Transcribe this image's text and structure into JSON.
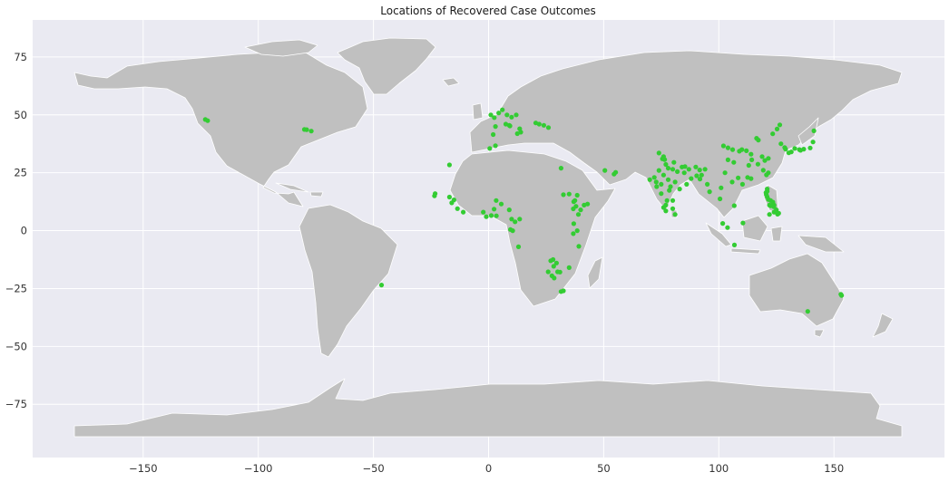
{
  "chart_data": {
    "type": "scatter",
    "title": "Locations of Recovered Case Outcomes",
    "xlabel": "",
    "ylabel": "",
    "xlim": [
      -198,
      198
    ],
    "ylim": [
      -98,
      91
    ],
    "x_ticks": [
      -150,
      -100,
      -50,
      0,
      50,
      100,
      150
    ],
    "y_ticks": [
      75,
      50,
      25,
      0,
      -25,
      -50,
      -75
    ],
    "grid": true,
    "style": "seaborn-darkgrid",
    "colors": {
      "background": "#eaeaf2",
      "land": "#c0c0c0",
      "borders": "#ffffff",
      "gridline": "#ffffff",
      "marker": "#33cc33"
    },
    "points": [
      {
        "x": -123,
        "y": 48
      },
      {
        "x": -122,
        "y": 47.5
      },
      {
        "x": -80,
        "y": 43.7
      },
      {
        "x": -79,
        "y": 43.6
      },
      {
        "x": -77,
        "y": 43
      },
      {
        "x": -46.5,
        "y": -23.5
      },
      {
        "x": 1,
        "y": 50
      },
      {
        "x": 2.5,
        "y": 48.8
      },
      {
        "x": 4.4,
        "y": 50.8
      },
      {
        "x": 6,
        "y": 52.2
      },
      {
        "x": 7.5,
        "y": 46
      },
      {
        "x": 9,
        "y": 45.5
      },
      {
        "x": 9.3,
        "y": 45.2
      },
      {
        "x": 10,
        "y": 49
      },
      {
        "x": 12,
        "y": 50
      },
      {
        "x": 12.5,
        "y": 41.9
      },
      {
        "x": 13.5,
        "y": 44
      },
      {
        "x": 14,
        "y": 42.5
      },
      {
        "x": 8,
        "y": 50
      },
      {
        "x": 20.5,
        "y": 46.5
      },
      {
        "x": 22,
        "y": 46
      },
      {
        "x": 24,
        "y": 45.5
      },
      {
        "x": 26,
        "y": 44.5
      },
      {
        "x": 3,
        "y": 45
      },
      {
        "x": 2,
        "y": 41.5
      },
      {
        "x": 0.5,
        "y": 35.5
      },
      {
        "x": 3,
        "y": 36.7
      },
      {
        "x": -17,
        "y": 28.4
      },
      {
        "x": -23.5,
        "y": 15
      },
      {
        "x": -23.2,
        "y": 16
      },
      {
        "x": -17,
        "y": 14.5
      },
      {
        "x": -16,
        "y": 12
      },
      {
        "x": -15,
        "y": 13.3
      },
      {
        "x": -13.5,
        "y": 9.5
      },
      {
        "x": -11,
        "y": 8
      },
      {
        "x": -2.3,
        "y": 8
      },
      {
        "x": -1,
        "y": 6
      },
      {
        "x": 1.2,
        "y": 6.5
      },
      {
        "x": 3.4,
        "y": 6.4
      },
      {
        "x": 2.4,
        "y": 9.3
      },
      {
        "x": 3.3,
        "y": 13
      },
      {
        "x": 5.5,
        "y": 11.5
      },
      {
        "x": 9,
        "y": 9
      },
      {
        "x": 10,
        "y": 5
      },
      {
        "x": 11.5,
        "y": 3.8
      },
      {
        "x": 13.5,
        "y": 5
      },
      {
        "x": 13,
        "y": -7
      },
      {
        "x": 9.5,
        "y": 0.5
      },
      {
        "x": 10.5,
        "y": 0
      },
      {
        "x": 31.5,
        "y": 27
      },
      {
        "x": 32.5,
        "y": 15.5
      },
      {
        "x": 35,
        "y": 15.8
      },
      {
        "x": 38.5,
        "y": 15.3
      },
      {
        "x": 37,
        "y": 12.5
      },
      {
        "x": 38,
        "y": 10.5
      },
      {
        "x": 40,
        "y": 9
      },
      {
        "x": 41.5,
        "y": 11
      },
      {
        "x": 43,
        "y": 11.5
      },
      {
        "x": 39,
        "y": 7
      },
      {
        "x": 36.8,
        "y": 9.4
      },
      {
        "x": 37.5,
        "y": 13
      },
      {
        "x": 36.8,
        "y": -1.3
      },
      {
        "x": 39.2,
        "y": -6.8
      },
      {
        "x": 37,
        "y": 3
      },
      {
        "x": 38.5,
        "y": 0
      },
      {
        "x": 28.3,
        "y": -15.4
      },
      {
        "x": 27,
        "y": -13
      },
      {
        "x": 28,
        "y": -12.5
      },
      {
        "x": 29.5,
        "y": -14
      },
      {
        "x": 30,
        "y": -17.8
      },
      {
        "x": 31,
        "y": -17.9
      },
      {
        "x": 27.5,
        "y": -19.5
      },
      {
        "x": 28.5,
        "y": -20.5
      },
      {
        "x": 32.5,
        "y": -26
      },
      {
        "x": 31.5,
        "y": -26.3
      },
      {
        "x": 25.9,
        "y": -17.8
      },
      {
        "x": 35,
        "y": -16
      },
      {
        "x": 50.5,
        "y": 26
      },
      {
        "x": 54.5,
        "y": 24.4
      },
      {
        "x": 55.2,
        "y": 25.2
      },
      {
        "x": 74,
        "y": 33.5
      },
      {
        "x": 75.5,
        "y": 31
      },
      {
        "x": 77,
        "y": 28.6
      },
      {
        "x": 78,
        "y": 27
      },
      {
        "x": 80,
        "y": 26.5
      },
      {
        "x": 82,
        "y": 25.5
      },
      {
        "x": 85,
        "y": 25
      },
      {
        "x": 88,
        "y": 22.5
      },
      {
        "x": 86,
        "y": 20
      },
      {
        "x": 83,
        "y": 18
      },
      {
        "x": 80,
        "y": 13
      },
      {
        "x": 77.5,
        "y": 13
      },
      {
        "x": 76,
        "y": 10
      },
      {
        "x": 77,
        "y": 8.5
      },
      {
        "x": 73,
        "y": 19
      },
      {
        "x": 72.8,
        "y": 21
      },
      {
        "x": 72,
        "y": 23
      },
      {
        "x": 70,
        "y": 22
      },
      {
        "x": 75,
        "y": 16
      },
      {
        "x": 78.5,
        "y": 17.4
      },
      {
        "x": 81,
        "y": 21
      },
      {
        "x": 78,
        "y": 22
      },
      {
        "x": 76,
        "y": 24
      },
      {
        "x": 74,
        "y": 26
      },
      {
        "x": 80.5,
        "y": 29.5
      },
      {
        "x": 84,
        "y": 27.5
      },
      {
        "x": 87,
        "y": 26.5
      },
      {
        "x": 91.7,
        "y": 26.2
      },
      {
        "x": 94,
        "y": 26.5
      },
      {
        "x": 92.5,
        "y": 24
      },
      {
        "x": 90.4,
        "y": 23.7
      },
      {
        "x": 76.5,
        "y": 30.7
      },
      {
        "x": 76,
        "y": 32
      },
      {
        "x": 75,
        "y": 20
      },
      {
        "x": 79,
        "y": 19
      },
      {
        "x": 77,
        "y": 11
      },
      {
        "x": 81,
        "y": 7
      },
      {
        "x": 80,
        "y": 9.5
      },
      {
        "x": 91.8,
        "y": 22.3
      },
      {
        "x": 90,
        "y": 27.5
      },
      {
        "x": 85.3,
        "y": 27.7
      },
      {
        "x": 96,
        "y": 16.8
      },
      {
        "x": 95,
        "y": 20
      },
      {
        "x": 100.5,
        "y": 13.7
      },
      {
        "x": 101,
        "y": 18.5
      },
      {
        "x": 105.8,
        "y": 21
      },
      {
        "x": 106.7,
        "y": 10.8
      },
      {
        "x": 103.8,
        "y": 1.3
      },
      {
        "x": 101.7,
        "y": 3.1
      },
      {
        "x": 106.8,
        "y": -6.2
      },
      {
        "x": 110.5,
        "y": 3.3
      },
      {
        "x": 102,
        "y": 36.6
      },
      {
        "x": 104,
        "y": 35.8
      },
      {
        "x": 106,
        "y": 35
      },
      {
        "x": 108.9,
        "y": 34.3
      },
      {
        "x": 110,
        "y": 35
      },
      {
        "x": 112,
        "y": 34.5
      },
      {
        "x": 114,
        "y": 33
      },
      {
        "x": 114.3,
        "y": 30.6
      },
      {
        "x": 113,
        "y": 28.2
      },
      {
        "x": 112.5,
        "y": 23
      },
      {
        "x": 114,
        "y": 22.5
      },
      {
        "x": 116.4,
        "y": 39.9
      },
      {
        "x": 117.2,
        "y": 39.1
      },
      {
        "x": 118.8,
        "y": 32
      },
      {
        "x": 120,
        "y": 30.3
      },
      {
        "x": 121.5,
        "y": 31.2
      },
      {
        "x": 119.3,
        "y": 26.1
      },
      {
        "x": 117,
        "y": 28.7
      },
      {
        "x": 104,
        "y": 30.6
      },
      {
        "x": 106.5,
        "y": 29.5
      },
      {
        "x": 108.4,
        "y": 22.8
      },
      {
        "x": 102.7,
        "y": 25
      },
      {
        "x": 110.3,
        "y": 20
      },
      {
        "x": 123.4,
        "y": 41.8
      },
      {
        "x": 126.5,
        "y": 45.7
      },
      {
        "x": 125.3,
        "y": 43.9
      },
      {
        "x": 121.5,
        "y": 25
      },
      {
        "x": 120.7,
        "y": 24.1
      },
      {
        "x": 127,
        "y": 37.5
      },
      {
        "x": 129,
        "y": 35.2
      },
      {
        "x": 128.6,
        "y": 35.9
      },
      {
        "x": 130.4,
        "y": 33.6
      },
      {
        "x": 135.5,
        "y": 34.7
      },
      {
        "x": 135,
        "y": 35
      },
      {
        "x": 136.9,
        "y": 35.2
      },
      {
        "x": 139.7,
        "y": 35.7
      },
      {
        "x": 140.9,
        "y": 38.3
      },
      {
        "x": 141.3,
        "y": 43.1
      },
      {
        "x": 133,
        "y": 35.5
      },
      {
        "x": 131.5,
        "y": 34
      },
      {
        "x": 121,
        "y": 18
      },
      {
        "x": 120.5,
        "y": 16.4
      },
      {
        "x": 121,
        "y": 14.6
      },
      {
        "x": 121.5,
        "y": 13.5
      },
      {
        "x": 122.5,
        "y": 13
      },
      {
        "x": 123.5,
        "y": 12.3
      },
      {
        "x": 124,
        "y": 11
      },
      {
        "x": 123.9,
        "y": 10.3
      },
      {
        "x": 125,
        "y": 9
      },
      {
        "x": 125.5,
        "y": 7.1
      },
      {
        "x": 124,
        "y": 8
      },
      {
        "x": 122,
        "y": 11
      },
      {
        "x": 122,
        "y": 7
      },
      {
        "x": 126,
        "y": 7.5
      },
      {
        "x": 121,
        "y": 17
      },
      {
        "x": 120.6,
        "y": 15.5
      },
      {
        "x": 122.5,
        "y": 10.7
      },
      {
        "x": 153,
        "y": -27.5
      },
      {
        "x": 153.3,
        "y": -28
      },
      {
        "x": 138.6,
        "y": -34.9
      }
    ]
  }
}
